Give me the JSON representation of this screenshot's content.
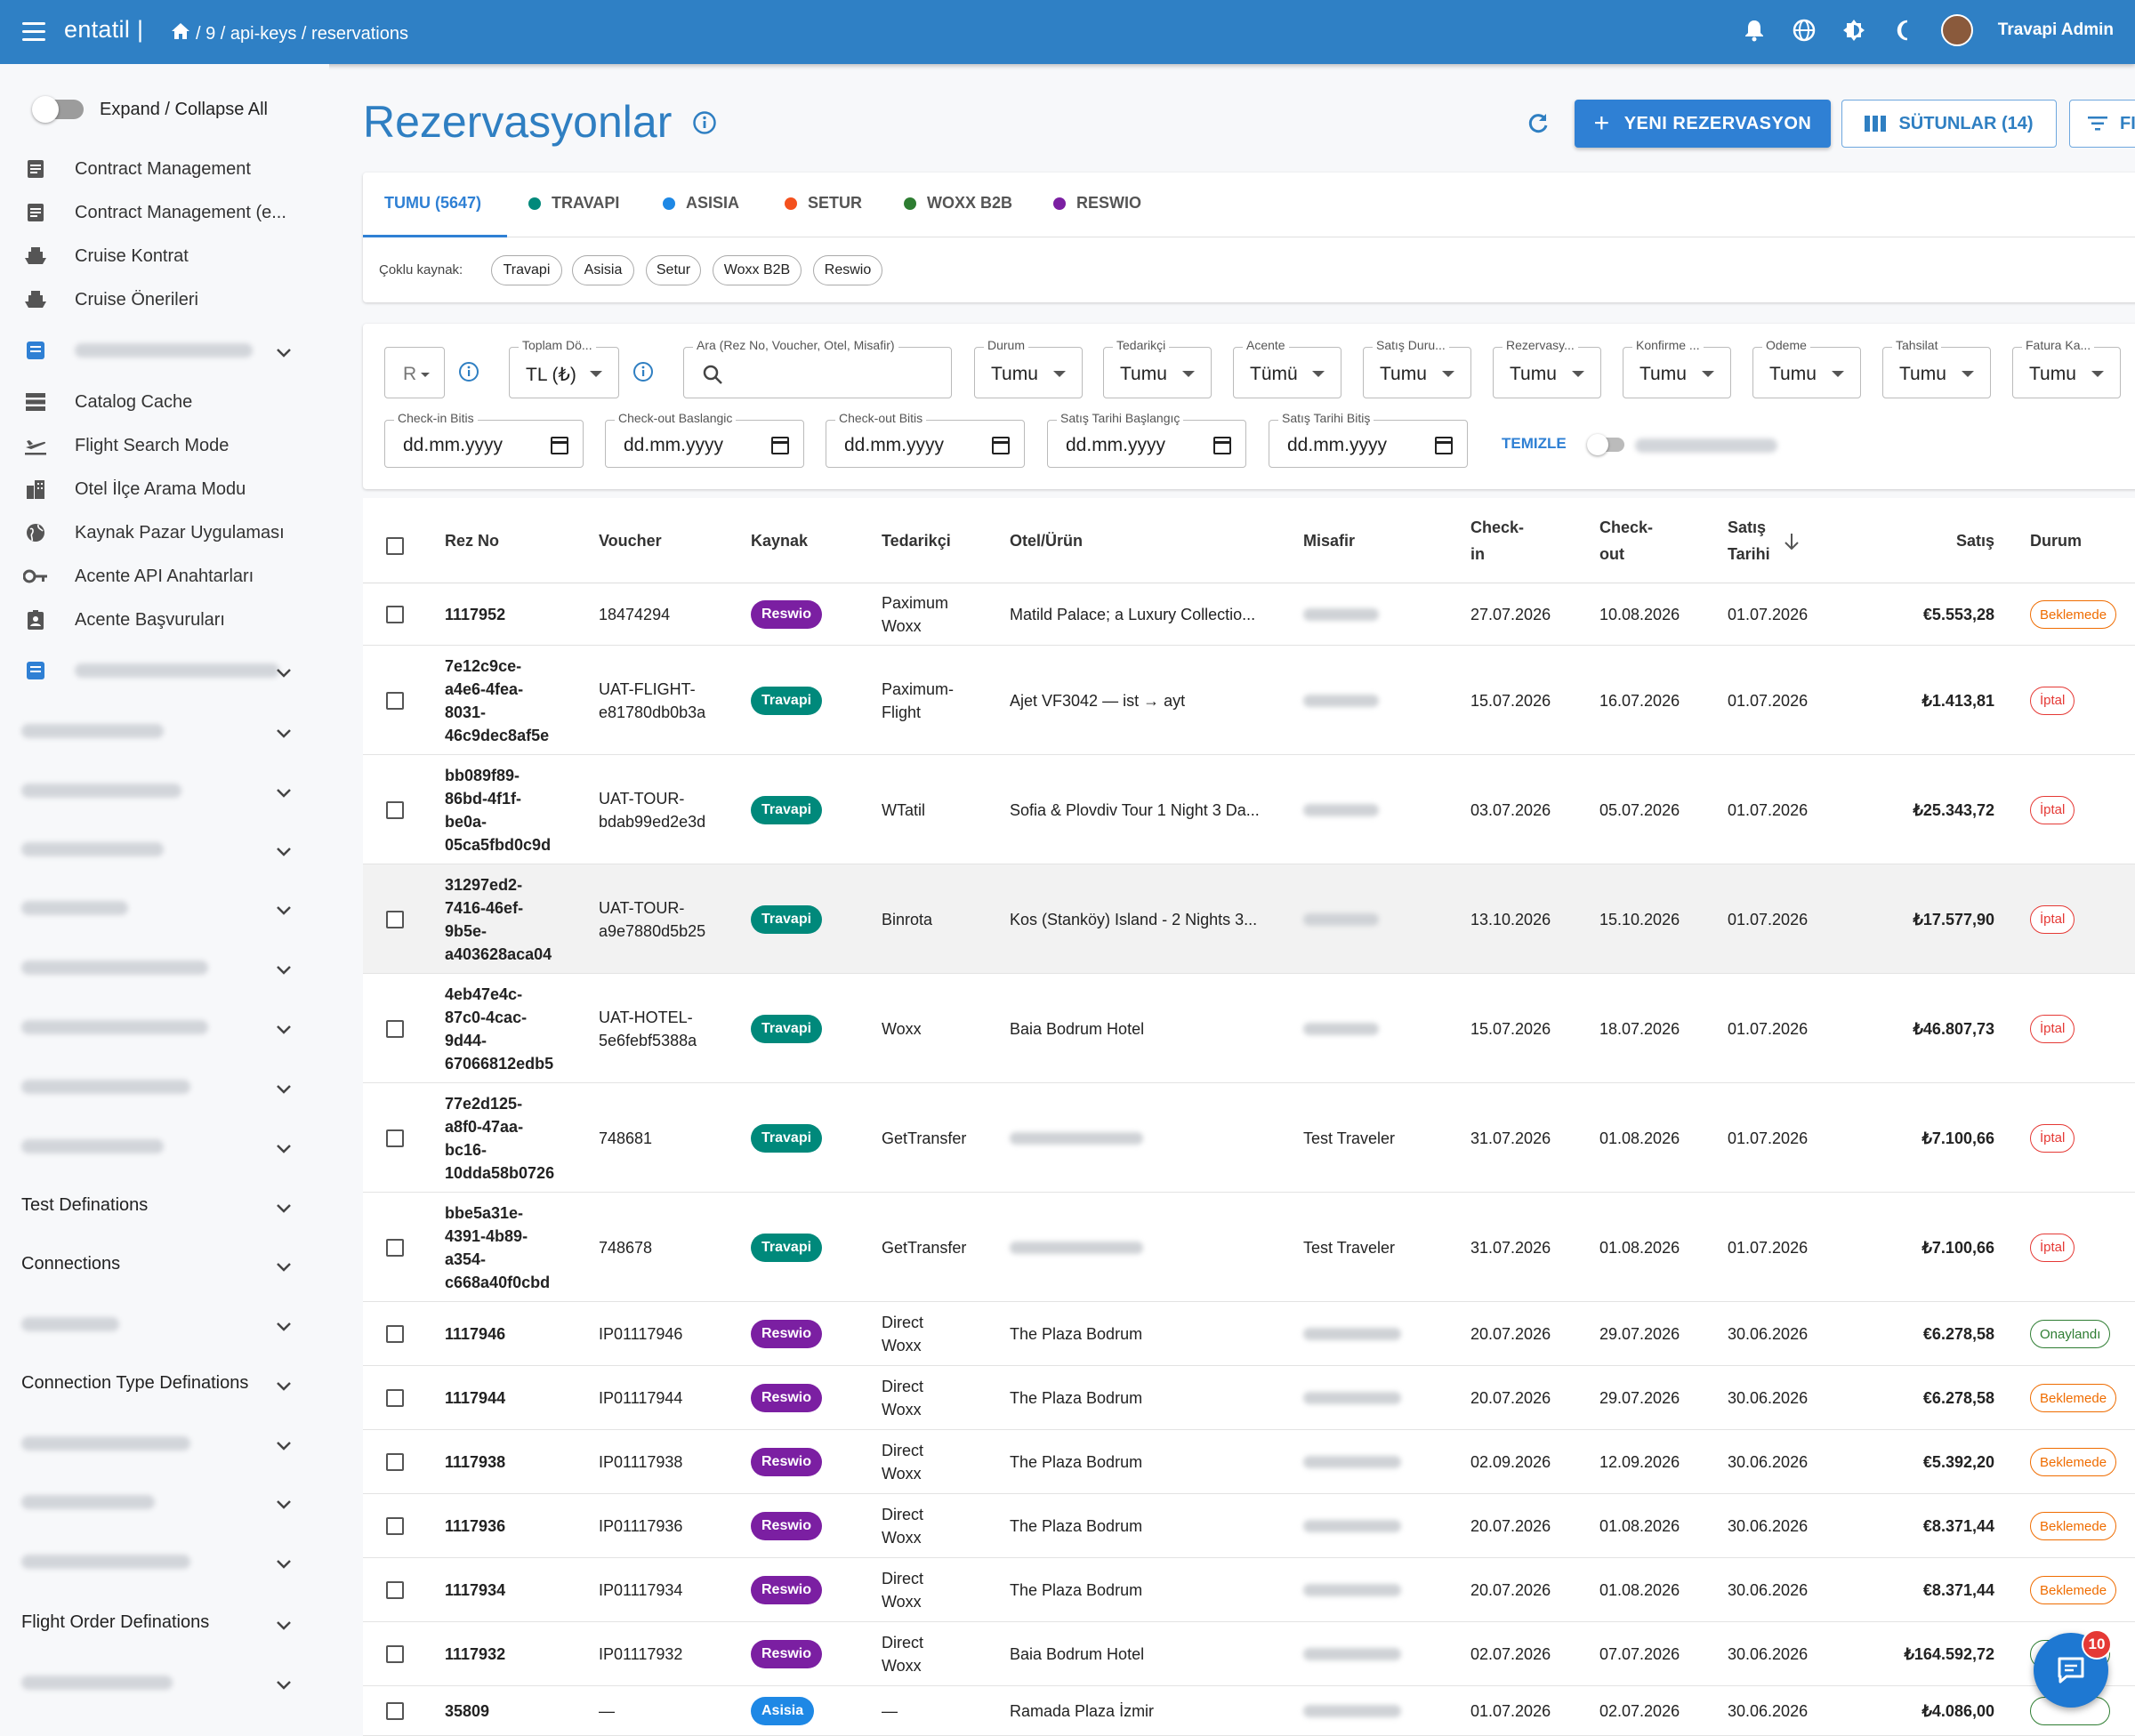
{
  "topbar": {
    "logo": "entatil |",
    "breadcrumb": [
      "/ 9 / api-keys / reservations"
    ],
    "username": "Travapi Admin"
  },
  "sidebar": {
    "expand_label": "Expand / Collapse All",
    "items": [
      {
        "label": "Contract Management",
        "icon": "document-icon"
      },
      {
        "label": "Contract Management (e...",
        "icon": "document-icon"
      },
      {
        "label": "Cruise Kontrat",
        "icon": "ship-icon"
      },
      {
        "label": "Cruise Önerileri",
        "icon": "ship-icon"
      },
      {
        "label": "Catalog Cache",
        "icon": "storage-icon"
      },
      {
        "label": "Flight Search Mode",
        "icon": "airplane-icon"
      },
      {
        "label": "Otel İlçe Arama Modu",
        "icon": "building-icon"
      },
      {
        "label": "Kaynak Pazar Uygulaması",
        "icon": "globe-icon"
      },
      {
        "label": "Acente API Anahtarları",
        "icon": "key-icon"
      },
      {
        "label": "Acente Başvuruları",
        "icon": "badge-icon"
      }
    ],
    "groups": [
      "Test Definations",
      "Connections",
      "Connection Type Definations",
      "Flight Order Definations"
    ]
  },
  "page": {
    "title": "Rezervasyonlar",
    "new_button": "YENI REZERVASYON",
    "columns_button": "SÜTUNLAR (14)",
    "filter_button": "FI"
  },
  "tabs": [
    {
      "label": "TUMU (5647)",
      "color": ""
    },
    {
      "label": "TRAVAPI",
      "color": "#00897b"
    },
    {
      "label": "ASISIA",
      "color": "#1e88e5"
    },
    {
      "label": "SETUR",
      "color": "#f4511e"
    },
    {
      "label": "WOXX B2B",
      "color": "#2e7d32"
    },
    {
      "label": "RESWIO",
      "color": "#7b1fa2"
    }
  ],
  "multi_source": {
    "label": "Çoklu kaynak:",
    "chips": [
      "Travapi",
      "Asisia",
      "Setur",
      "Woxx B2B",
      "Reswio"
    ]
  },
  "filters": {
    "rez_prefix": "R",
    "total_label": "Toplam Dö...",
    "total_value": "TL (₺)",
    "search_label": "Ara (Rez No, Voucher, Otel, Misafir)",
    "selects": [
      {
        "label": "Durum",
        "value": "Tumu"
      },
      {
        "label": "Tedarikçi",
        "value": "Tumu"
      },
      {
        "label": "Acente",
        "value": "Tümü"
      },
      {
        "label": "Satış Duru...",
        "value": "Tumu"
      },
      {
        "label": "Rezervasy...",
        "value": "Tumu"
      },
      {
        "label": "Konfirme ...",
        "value": "Tumu"
      },
      {
        "label": "Odeme",
        "value": "Tumu"
      },
      {
        "label": "Tahsilat",
        "value": "Tumu"
      },
      {
        "label": "Fatura Ka...",
        "value": "Tumu"
      }
    ],
    "dates": [
      {
        "label": "Check-in Bitis",
        "value": "dd.mm.yyyy"
      },
      {
        "label": "Check-out Baslangic",
        "value": "dd.mm.yyyy"
      },
      {
        "label": "Check-out Bitis",
        "value": "dd.mm.yyyy"
      },
      {
        "label": "Satış Tarihi Başlangıç",
        "value": "dd.mm.yyyy"
      },
      {
        "label": "Satış Tarihi Bitiş",
        "value": "dd.mm.yyyy"
      }
    ],
    "clear": "TEMIZLE"
  },
  "table": {
    "headers": {
      "rez": "Rez No",
      "voucher": "Voucher",
      "source": "Kaynak",
      "supplier": "Tedarikçi",
      "hotel": "Otel/Ürün",
      "guest": "Misafir",
      "checkin": [
        "Check-",
        "in"
      ],
      "checkout": [
        "Check-",
        "out"
      ],
      "sale_date": [
        "Satış",
        "Tarihi"
      ],
      "sale": "Satış",
      "status": "Durum"
    },
    "rows": [
      {
        "rez": [
          "1117952"
        ],
        "voucher": [
          "18474294"
        ],
        "source": "Reswio",
        "supplier": [
          "Paximum",
          "Woxx"
        ],
        "hotel": "Matild Palace; a Luxury Collectio...",
        "guest": "",
        "checkin": "27.07.2026",
        "checkout": "10.08.2026",
        "sale_date": "01.07.2026",
        "sale": "€5.553,28",
        "status": "Beklemede"
      },
      {
        "rez": [
          "7e12c9ce-",
          "a4e6-4fea-",
          "8031-",
          "46c9dec8af5e"
        ],
        "voucher": [
          "UAT-FLIGHT-",
          "e81780db0b3a"
        ],
        "source": "Travapi",
        "supplier": [
          "Paximum-",
          "Flight"
        ],
        "hotel": "Ajet VF3042 — ist → ayt",
        "guest": "",
        "checkin": "15.07.2026",
        "checkout": "16.07.2026",
        "sale_date": "01.07.2026",
        "sale": "₺1.413,81",
        "status": "İptal"
      },
      {
        "rez": [
          "bb089f89-",
          "86bd-4f1f-",
          "be0a-",
          "05ca5fbd0c9d"
        ],
        "voucher": [
          "UAT-TOUR-",
          "bdab99ed2e3d"
        ],
        "source": "Travapi",
        "supplier": [
          "WTatil"
        ],
        "hotel": "Sofia & Plovdiv Tour 1 Night 3 Da...",
        "guest": "",
        "checkin": "03.07.2026",
        "checkout": "05.07.2026",
        "sale_date": "01.07.2026",
        "sale": "₺25.343,72",
        "status": "İptal"
      },
      {
        "rez": [
          "31297ed2-",
          "7416-46ef-",
          "9b5e-",
          "a403628aca04"
        ],
        "voucher": [
          "UAT-TOUR-",
          "a9e7880d5b25"
        ],
        "source": "Travapi",
        "supplier": [
          "Binrota"
        ],
        "hotel": "Kos (Stanköy) Island - 2 Nights 3...",
        "guest": "",
        "checkin": "13.10.2026",
        "checkout": "15.10.2026",
        "sale_date": "01.07.2026",
        "sale": "₺17.577,90",
        "status": "İptal"
      },
      {
        "rez": [
          "4eb47e4c-",
          "87c0-4cac-",
          "9d44-",
          "67066812edb5"
        ],
        "voucher": [
          "UAT-HOTEL-",
          "5e6febf5388a"
        ],
        "source": "Travapi",
        "supplier": [
          "Woxx"
        ],
        "hotel": "Baia Bodrum Hotel",
        "guest": "",
        "checkin": "15.07.2026",
        "checkout": "18.07.2026",
        "sale_date": "01.07.2026",
        "sale": "₺46.807,73",
        "status": "İptal"
      },
      {
        "rez": [
          "77e2d125-",
          "a8f0-47aa-",
          "bc16-",
          "10dda58b0726"
        ],
        "voucher": [
          "748681"
        ],
        "source": "Travapi",
        "supplier": [
          "GetTransfer"
        ],
        "hotel": "",
        "guest": "Test Traveler",
        "checkin": "31.07.2026",
        "checkout": "01.08.2026",
        "sale_date": "01.07.2026",
        "sale": "₺7.100,66",
        "status": "İptal"
      },
      {
        "rez": [
          "bbe5a31e-",
          "4391-4b89-",
          "a354-",
          "c668a40f0cbd"
        ],
        "voucher": [
          "748678"
        ],
        "source": "Travapi",
        "supplier": [
          "GetTransfer"
        ],
        "hotel": "",
        "guest": "Test Traveler",
        "checkin": "31.07.2026",
        "checkout": "01.08.2026",
        "sale_date": "01.07.2026",
        "sale": "₺7.100,66",
        "status": "İptal"
      },
      {
        "rez": [
          "1117946"
        ],
        "voucher": [
          "IP01117946"
        ],
        "source": "Reswio",
        "supplier": [
          "Direct",
          "Woxx"
        ],
        "hotel": "The Plaza Bodrum",
        "guest": "",
        "checkin": "20.07.2026",
        "checkout": "29.07.2026",
        "sale_date": "30.06.2026",
        "sale": "€6.278,58",
        "status": "Onaylandı"
      },
      {
        "rez": [
          "1117944"
        ],
        "voucher": [
          "IP01117944"
        ],
        "source": "Reswio",
        "supplier": [
          "Direct",
          "Woxx"
        ],
        "hotel": "The Plaza Bodrum",
        "guest": "",
        "checkin": "20.07.2026",
        "checkout": "29.07.2026",
        "sale_date": "30.06.2026",
        "sale": "€6.278,58",
        "status": "Beklemede"
      },
      {
        "rez": [
          "1117938"
        ],
        "voucher": [
          "IP01117938"
        ],
        "source": "Reswio",
        "supplier": [
          "Direct",
          "Woxx"
        ],
        "hotel": "The Plaza Bodrum",
        "guest": "",
        "checkin": "02.09.2026",
        "checkout": "12.09.2026",
        "sale_date": "30.06.2026",
        "sale": "€5.392,20",
        "status": "Beklemede"
      },
      {
        "rez": [
          "1117936"
        ],
        "voucher": [
          "IP01117936"
        ],
        "source": "Reswio",
        "supplier": [
          "Direct",
          "Woxx"
        ],
        "hotel": "The Plaza Bodrum",
        "guest": "",
        "checkin": "20.07.2026",
        "checkout": "01.08.2026",
        "sale_date": "30.06.2026",
        "sale": "€8.371,44",
        "status": "Beklemede"
      },
      {
        "rez": [
          "1117934"
        ],
        "voucher": [
          "IP01117934"
        ],
        "source": "Reswio",
        "supplier": [
          "Direct",
          "Woxx"
        ],
        "hotel": "The Plaza Bodrum",
        "guest": "",
        "checkin": "20.07.2026",
        "checkout": "01.08.2026",
        "sale_date": "30.06.2026",
        "sale": "€8.371,44",
        "status": "Beklemede"
      },
      {
        "rez": [
          "1117932"
        ],
        "voucher": [
          "IP01117932"
        ],
        "source": "Reswio",
        "supplier": [
          "Direct",
          "Woxx"
        ],
        "hotel": "Baia Bodrum Hotel",
        "guest": "",
        "checkin": "02.07.2026",
        "checkout": "07.07.2026",
        "sale_date": "30.06.2026",
        "sale": "₺164.592,72",
        "status": ""
      },
      {
        "rez": [
          "35809"
        ],
        "voucher": [
          "—"
        ],
        "source": "Asisia",
        "supplier": [
          "—"
        ],
        "hotel": "Ramada Plaza İzmir",
        "guest": "",
        "checkin": "01.07.2026",
        "checkout": "02.07.2026",
        "sale_date": "30.06.2026",
        "sale": "₺4.086,00",
        "status": ""
      }
    ]
  },
  "source_colors": {
    "Reswio": "#7b1fa2",
    "Travapi": "#00897b",
    "Asisia": "#1e88e5"
  },
  "status_colors": {
    "Beklemede": "#ef6c00",
    "İptal": "#e53935",
    "Onaylandı": "#2e7d32"
  },
  "chat": {
    "badge": "10"
  }
}
